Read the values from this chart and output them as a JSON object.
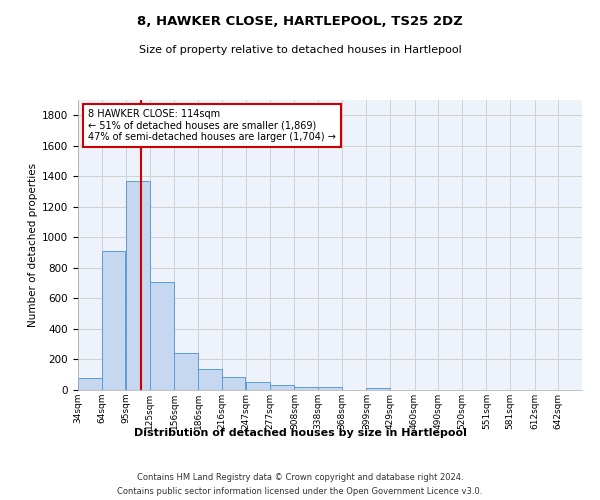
{
  "title": "8, HAWKER CLOSE, HARTLEPOOL, TS25 2DZ",
  "subtitle": "Size of property relative to detached houses in Hartlepool",
  "xlabel": "Distribution of detached houses by size in Hartlepool",
  "ylabel": "Number of detached properties",
  "bar_labels": [
    "34sqm",
    "64sqm",
    "95sqm",
    "125sqm",
    "156sqm",
    "186sqm",
    "216sqm",
    "247sqm",
    "277sqm",
    "308sqm",
    "338sqm",
    "368sqm",
    "399sqm",
    "429sqm",
    "460sqm",
    "490sqm",
    "520sqm",
    "551sqm",
    "581sqm",
    "612sqm",
    "642sqm"
  ],
  "bar_values": [
    80,
    910,
    1370,
    710,
    245,
    140,
    85,
    50,
    30,
    20,
    20,
    0,
    15,
    0,
    0,
    0,
    0,
    0,
    0,
    0,
    0
  ],
  "bar_color": "#c5d8f0",
  "bar_edge_color": "#5b9bd5",
  "grid_color": "#d0d0d0",
  "bg_color": "#eef3fb",
  "property_size": 114,
  "property_label": "8 HAWKER CLOSE: 114sqm",
  "annotation_line1": "← 51% of detached houses are smaller (1,869)",
  "annotation_line2": "47% of semi-detached houses are larger (1,704) →",
  "vline_color": "#cc0000",
  "annotation_box_color": "#cc0000",
  "ylim": [
    0,
    1900
  ],
  "footnote1": "Contains HM Land Registry data © Crown copyright and database right 2024.",
  "footnote2": "Contains public sector information licensed under the Open Government Licence v3.0.",
  "bin_starts": [
    34,
    64,
    95,
    125,
    156,
    186,
    216,
    247,
    277,
    308,
    338,
    368,
    399,
    429,
    460,
    490,
    520,
    551,
    581,
    612,
    642
  ],
  "bin_width": 30
}
